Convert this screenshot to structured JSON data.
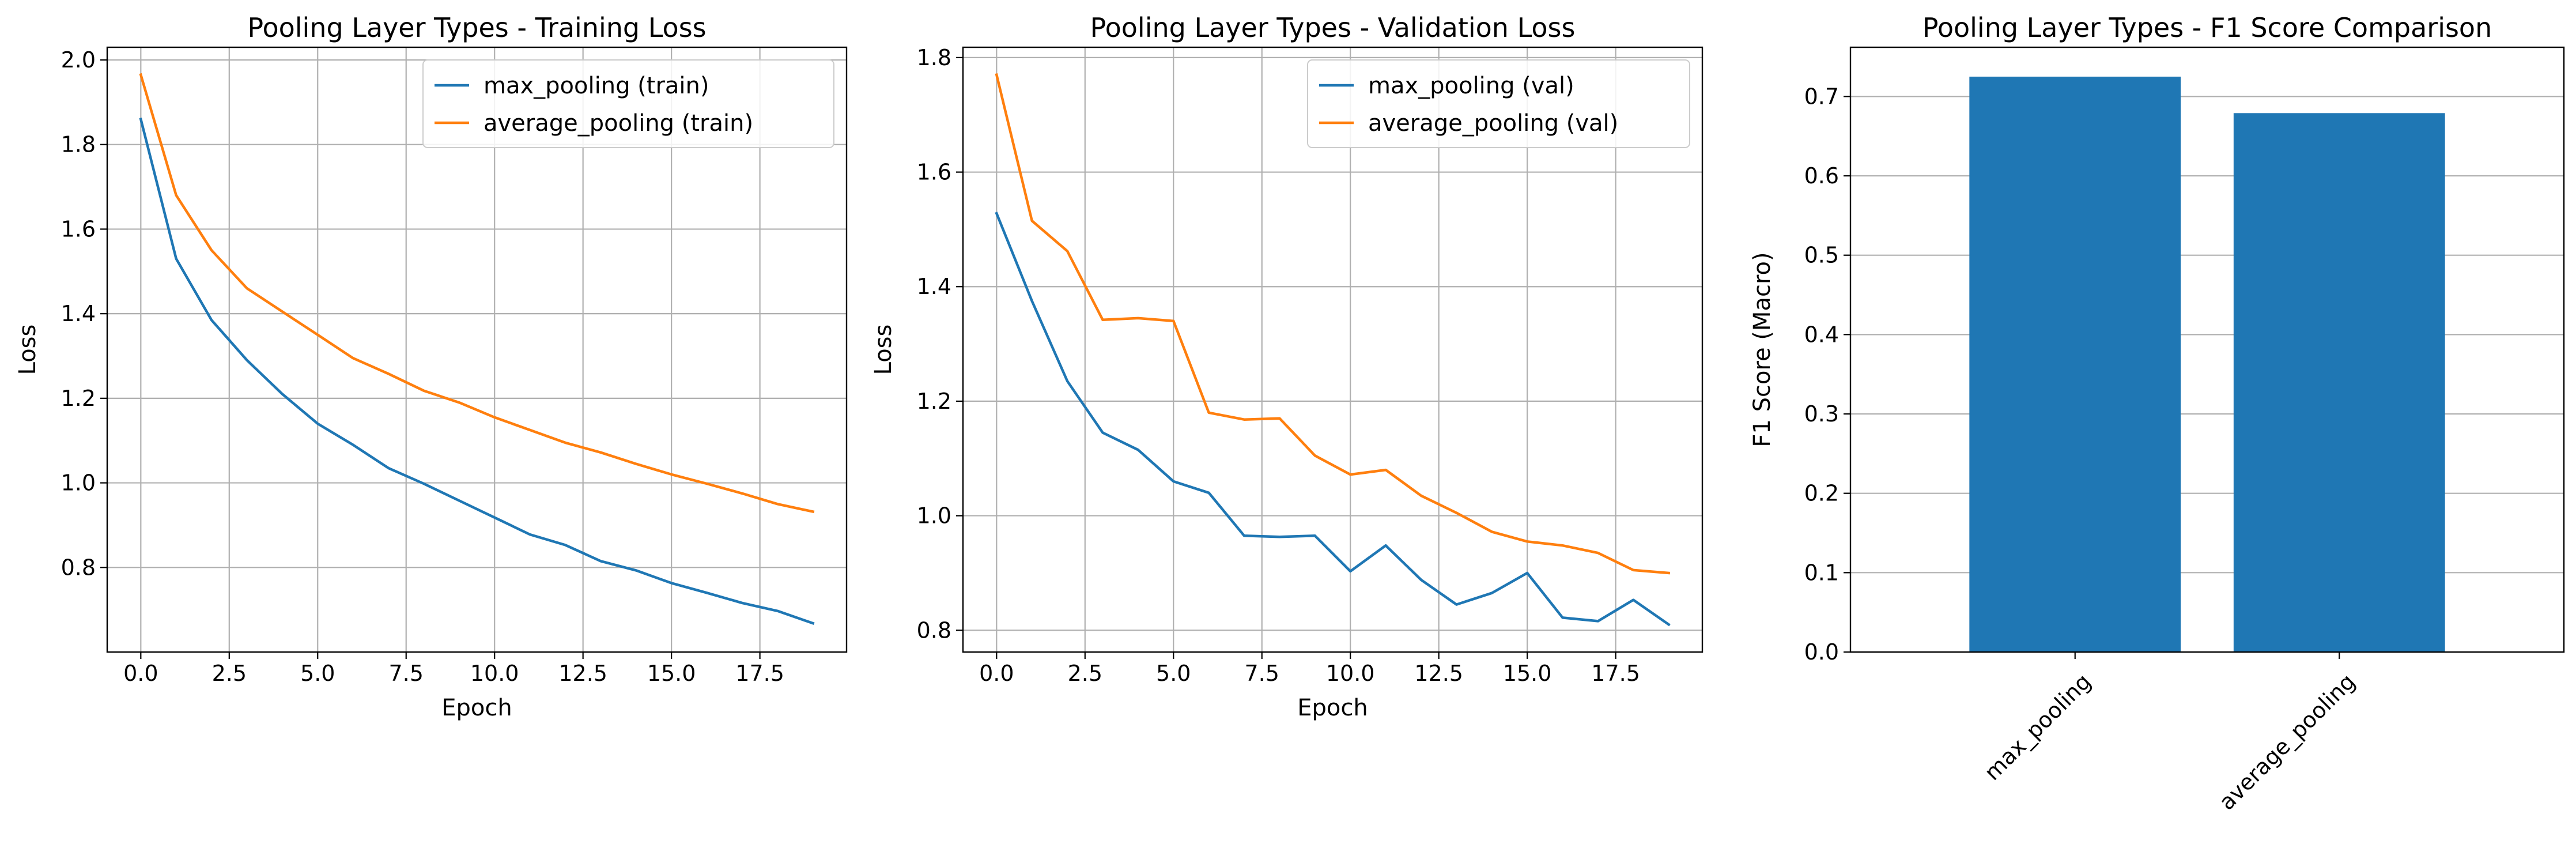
{
  "chart_data": [
    {
      "type": "line",
      "title": "Pooling Layer Types - Training Loss",
      "xlabel": "Epoch",
      "ylabel": "Loss",
      "xlim": [
        -0.95,
        19.95
      ],
      "ylim": [
        0.6,
        2.03
      ],
      "xticks": [
        0,
        2.5,
        5,
        7.5,
        10,
        12.5,
        15,
        17.5
      ],
      "xtick_labels": [
        "0.0",
        "2.5",
        "5.0",
        "7.5",
        "10.0",
        "12.5",
        "15.0",
        "17.5"
      ],
      "yticks": [
        0.8,
        1.0,
        1.2,
        1.4,
        1.6,
        1.8,
        2.0
      ],
      "ytick_labels": [
        "0.8",
        "1.0",
        "1.2",
        "1.4",
        "1.6",
        "1.8",
        "2.0"
      ],
      "grid": true,
      "legend_position": "top-right",
      "x": [
        0,
        1,
        2,
        3,
        4,
        5,
        6,
        7,
        8,
        9,
        10,
        11,
        12,
        13,
        14,
        15,
        16,
        17,
        18,
        19
      ],
      "series": [
        {
          "name": "max_pooling (train)",
          "color": "#1f77b4",
          "values": [
            1.86,
            1.53,
            1.385,
            1.29,
            1.21,
            1.14,
            1.09,
            1.035,
            0.998,
            0.958,
            0.918,
            0.878,
            0.853,
            0.815,
            0.793,
            0.763,
            0.74,
            0.716,
            0.697,
            0.668
          ]
        },
        {
          "name": "average_pooling (train)",
          "color": "#ff7f0e",
          "values": [
            1.965,
            1.68,
            1.55,
            1.46,
            1.405,
            1.35,
            1.295,
            1.258,
            1.218,
            1.19,
            1.155,
            1.125,
            1.095,
            1.072,
            1.045,
            1.02,
            0.998,
            0.975,
            0.95,
            0.932
          ]
        }
      ]
    },
    {
      "type": "line",
      "title": "Pooling Layer Types - Validation Loss",
      "xlabel": "Epoch",
      "ylabel": "Loss",
      "xlim": [
        -0.95,
        19.95
      ],
      "ylim": [
        0.762,
        1.818
      ],
      "xticks": [
        0,
        2.5,
        5,
        7.5,
        10,
        12.5,
        15,
        17.5
      ],
      "xtick_labels": [
        "0.0",
        "2.5",
        "5.0",
        "7.5",
        "10.0",
        "12.5",
        "15.0",
        "17.5"
      ],
      "yticks": [
        0.8,
        1.0,
        1.2,
        1.4,
        1.6,
        1.8
      ],
      "ytick_labels": [
        "0.8",
        "1.0",
        "1.2",
        "1.4",
        "1.6",
        "1.8"
      ],
      "grid": true,
      "legend_position": "top-right",
      "x": [
        0,
        1,
        2,
        3,
        4,
        5,
        6,
        7,
        8,
        9,
        10,
        11,
        12,
        13,
        14,
        15,
        16,
        17,
        18,
        19
      ],
      "series": [
        {
          "name": "max_pooling (val)",
          "color": "#1f77b4",
          "values": [
            1.528,
            1.375,
            1.235,
            1.145,
            1.115,
            1.06,
            1.04,
            0.965,
            0.963,
            0.965,
            0.903,
            0.948,
            0.888,
            0.845,
            0.865,
            0.9,
            0.822,
            0.816,
            0.853,
            0.81
          ]
        },
        {
          "name": "average_pooling (val)",
          "color": "#ff7f0e",
          "values": [
            1.77,
            1.515,
            1.462,
            1.342,
            1.345,
            1.34,
            1.18,
            1.168,
            1.17,
            1.105,
            1.072,
            1.08,
            1.035,
            1.005,
            0.972,
            0.955,
            0.948,
            0.935,
            0.905,
            0.9
          ]
        }
      ]
    },
    {
      "type": "bar",
      "title": "Pooling Layer Types - F1 Score Comparison",
      "xlabel": "",
      "ylabel": "F1 Score (Macro)",
      "ylim": [
        0,
        0.762
      ],
      "yticks": [
        0.0,
        0.1,
        0.2,
        0.3,
        0.4,
        0.5,
        0.6,
        0.7
      ],
      "ytick_labels": [
        "0.0",
        "0.1",
        "0.2",
        "0.3",
        "0.4",
        "0.5",
        "0.6",
        "0.7"
      ],
      "grid": true,
      "bar_color": "#1f77b4",
      "categories": [
        "max_pooling",
        "average_pooling"
      ],
      "values": [
        0.725,
        0.679
      ]
    }
  ]
}
